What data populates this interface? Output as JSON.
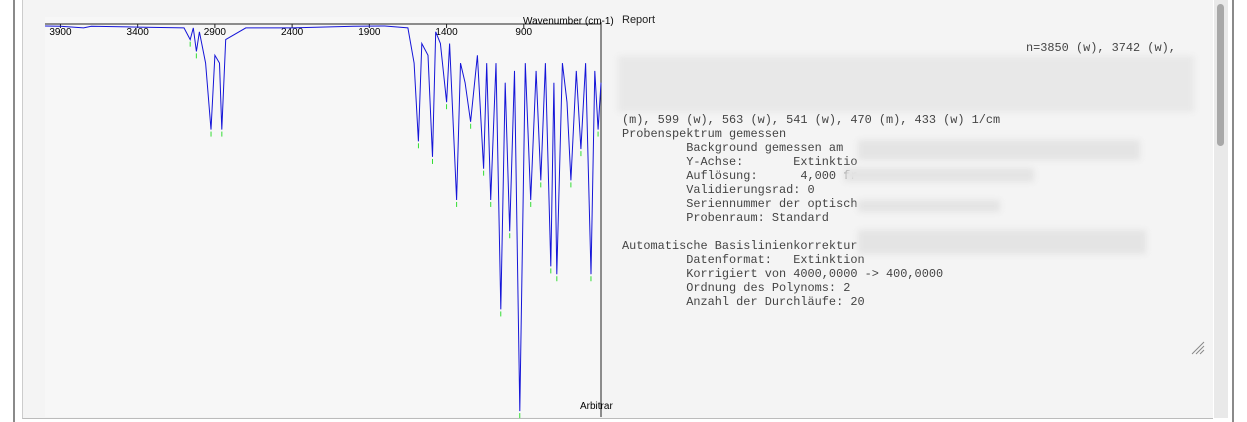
{
  "chart_data": {
    "type": "line",
    "x_label": "Wavenumber (cm-1)",
    "y_label": "Arbitrar",
    "xlim": [
      4000,
      400
    ],
    "ylim": [
      0,
      1
    ],
    "y_inverted": true,
    "xticks": [
      3900,
      3400,
      2900,
      2400,
      1900,
      1400,
      900
    ],
    "color": "#1515d8",
    "peak_color": "#33dd33",
    "x": [
      4000,
      3900,
      3750,
      3700,
      3400,
      3100,
      3060,
      3040,
      3020,
      3000,
      2960,
      2925,
      2900,
      2870,
      2855,
      2830,
      2700,
      2400,
      2000,
      1800,
      1650,
      1610,
      1582,
      1560,
      1520,
      1491,
      1470,
      1440,
      1400,
      1380,
      1335,
      1310,
      1280,
      1244,
      1200,
      1160,
      1140,
      1114,
      1080,
      1049,
      1020,
      991,
      960,
      926,
      890,
      855,
      820,
      790,
      760,
      725,
      705,
      686,
      650,
      620,
      595,
      560,
      530,
      500,
      465,
      440,
      419,
      400
    ],
    "values": [
      0.005,
      0.006,
      0.01,
      0.006,
      0.008,
      0.01,
      0.04,
      0.01,
      0.07,
      0.02,
      0.1,
      0.27,
      0.08,
      0.1,
      0.27,
      0.04,
      0.01,
      0.01,
      0.006,
      0.005,
      0.01,
      0.1,
      0.3,
      0.05,
      0.08,
      0.34,
      0.02,
      0.05,
      0.2,
      0.05,
      0.45,
      0.1,
      0.15,
      0.25,
      0.08,
      0.37,
      0.1,
      0.45,
      0.1,
      0.73,
      0.15,
      0.53,
      0.12,
      0.99,
      0.1,
      0.45,
      0.12,
      0.4,
      0.1,
      0.62,
      0.15,
      0.64,
      0.1,
      0.2,
      0.4,
      0.12,
      0.32,
      0.1,
      0.64,
      0.12,
      0.27,
      0.15
    ]
  },
  "report": {
    "label": "Report",
    "first_line": "n=3850 (w), 3742 (w),",
    "lines": [
      "(m), 599 (w), 563 (w), 541 (w), 470 (m), 433 (w) 1/cm",
      "Probenspektrum gemessen",
      "         Background gemessen am",
      "         Y-Achse:       Extinktio",
      "         Auflösung:      4,000 fr",
      "         Validierungsrad: 0",
      "         Seriennummer der optisch",
      "         Probenraum: Standard",
      "",
      "Automatische Basislinienkorrektur",
      "         Datenformat:   Extinktion",
      "         Korrigiert von 4000,0000 -> 400,0000",
      "         Ordnung des Polynoms: 2",
      "         Anzahl der Durchläufe: 20"
    ]
  }
}
